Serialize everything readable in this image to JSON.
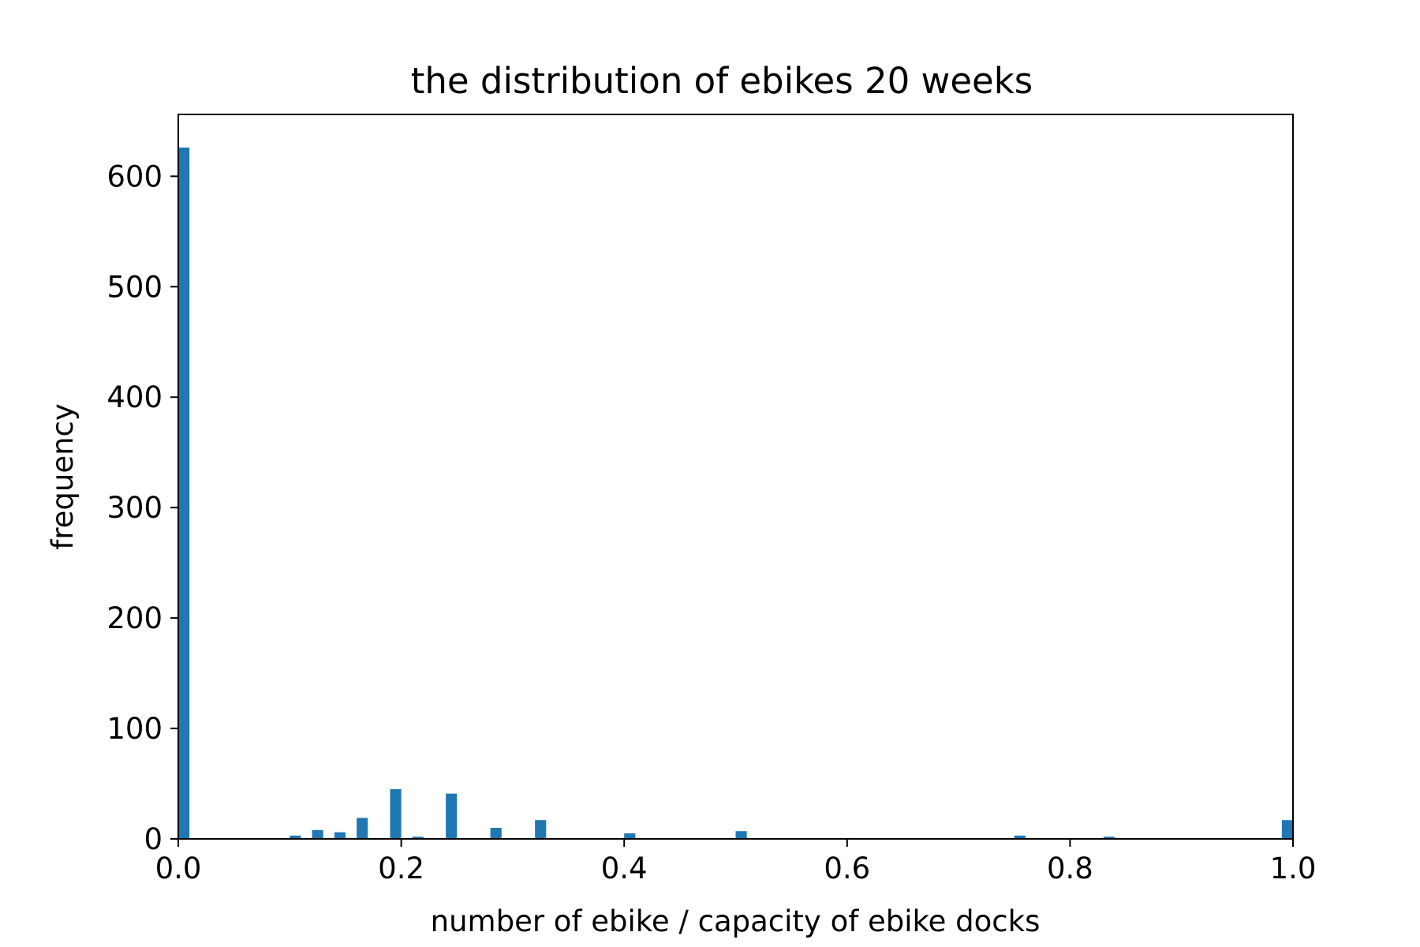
{
  "chart_data": {
    "type": "bar",
    "title": "the distribution of ebikes 20 weeks",
    "xlabel": "number of ebike / capacity of ebike docks",
    "ylabel": "frequency",
    "xlim": [
      0.0,
      1.0
    ],
    "ylim": [
      0,
      656
    ],
    "bin_width": 0.01,
    "grid": false,
    "bar_color": "#1f77b4",
    "x_ticks": [
      "0.0",
      "0.2",
      "0.4",
      "0.6",
      "0.8",
      "1.0"
    ],
    "y_ticks": [
      "0",
      "100",
      "200",
      "300",
      "400",
      "500",
      "600"
    ],
    "bins": [
      {
        "x": 0.0,
        "value": 626
      },
      {
        "x": 0.1,
        "value": 3
      },
      {
        "x": 0.12,
        "value": 8
      },
      {
        "x": 0.14,
        "value": 6
      },
      {
        "x": 0.16,
        "value": 19
      },
      {
        "x": 0.19,
        "value": 45
      },
      {
        "x": 0.21,
        "value": 2
      },
      {
        "x": 0.24,
        "value": 41
      },
      {
        "x": 0.28,
        "value": 10
      },
      {
        "x": 0.32,
        "value": 17
      },
      {
        "x": 0.4,
        "value": 5
      },
      {
        "x": 0.5,
        "value": 7
      },
      {
        "x": 0.75,
        "value": 3
      },
      {
        "x": 0.83,
        "value": 2
      },
      {
        "x": 0.99,
        "value": 17
      }
    ]
  }
}
